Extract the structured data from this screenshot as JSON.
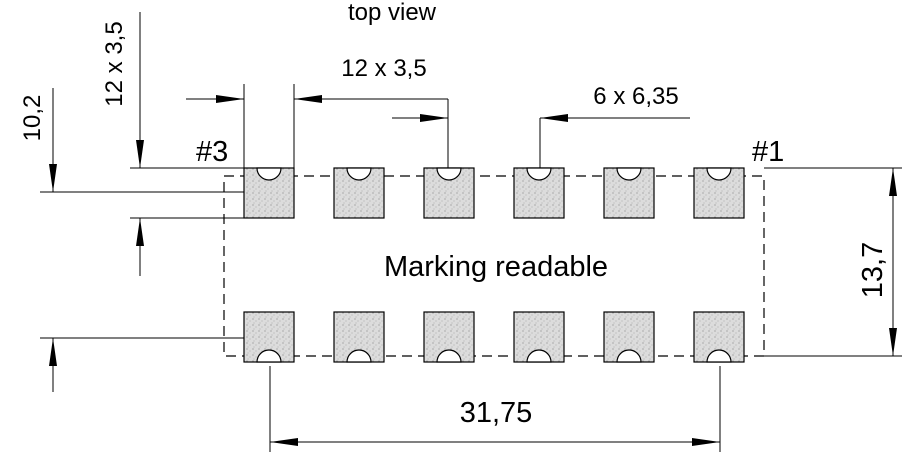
{
  "title": "top view",
  "body_label": "Marking readable",
  "pin_labels": {
    "pin1": "#1",
    "pin3": "#3"
  },
  "dimensions": {
    "pad_pitch_horizontal": "12 x 3,5",
    "pad_size_vertical": "12 x 3,5",
    "pad_pitch_spacing": "6 x 6,35",
    "pad_row_span": "10,2",
    "body_height": "13,7",
    "body_width": "31,75"
  },
  "layout": {
    "pads_per_row": 6,
    "rows": 2,
    "pad_fill_color": "#d6d6d6",
    "line_color": "#000000"
  }
}
